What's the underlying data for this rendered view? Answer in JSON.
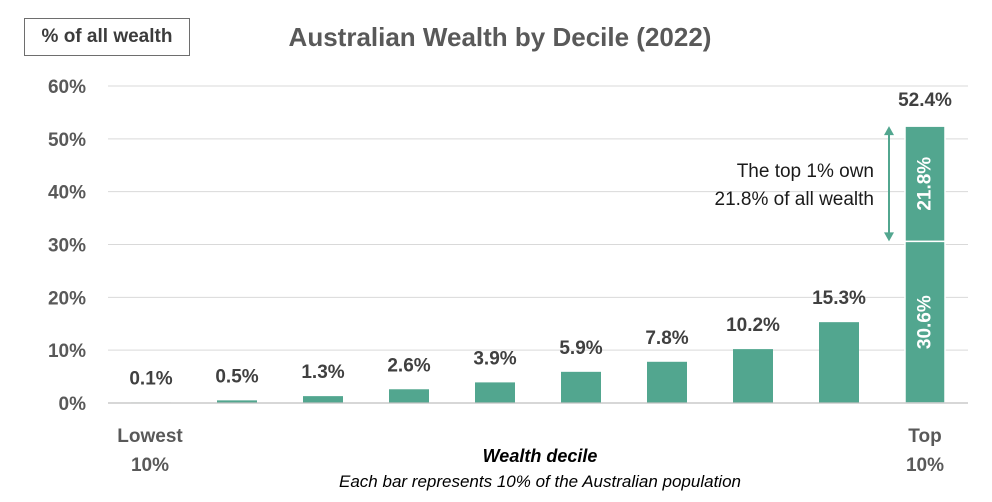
{
  "chart_data": {
    "type": "bar",
    "title": "Australian Wealth by Decile (2022)",
    "ylabel": "% of all wealth",
    "xlabel": "Wealth decile",
    "x_note": "Each bar represents 10% of the Australian population",
    "left_label": [
      "Lowest",
      "10%"
    ],
    "right_label": [
      "Top",
      "10%"
    ],
    "ylim": [
      0,
      60
    ],
    "y_ticks": [
      0,
      10,
      20,
      30,
      40,
      50,
      60
    ],
    "y_tick_labels": [
      "0%",
      "10%",
      "20%",
      "30%",
      "40%",
      "50%",
      "60%"
    ],
    "grid": true,
    "bar_color": "#52a68f",
    "values": [
      0.1,
      0.5,
      1.3,
      2.6,
      3.9,
      5.9,
      7.8,
      10.2,
      15.3,
      52.4
    ],
    "value_labels": [
      "0.1%",
      "0.5%",
      "1.3%",
      "2.6%",
      "3.9%",
      "5.9%",
      "7.8%",
      "10.2%",
      "15.3%",
      "52.4%"
    ],
    "top_decile_split": {
      "segments": [
        {
          "value": 30.6,
          "label": "30.6%"
        },
        {
          "value": 21.8,
          "label": "21.8%"
        }
      ]
    },
    "annotation": [
      "The top 1% own",
      "21.8% of all wealth"
    ]
  }
}
